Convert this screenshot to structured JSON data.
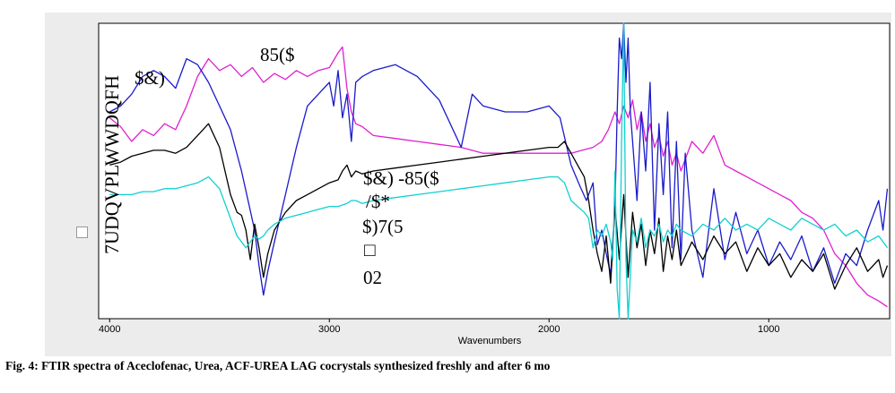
{
  "caption": "Fig. 4: FTIR spectra of Aceclofenac, Urea, ACF-UREA LAG cocrystals synthesized freshly and after 6 mo",
  "chart_data": {
    "type": "line",
    "title": "",
    "xlabel": "Wavenumbers",
    "ylabel": "7UDQVPLWWDQFH",
    "x_ticks": [
      4000,
      3000,
      2000,
      1000
    ],
    "x_reversed": true,
    "xlim": [
      4050,
      450
    ],
    "ylim": [
      0,
      100
    ],
    "grid": false,
    "annotations": [
      "$&)",
      "85($",
      "$&) -85($",
      "/$*",
      "$)7(5",
      "□",
      "02"
    ],
    "series": [
      {
        "name": "85($",
        "color": "#e020d0",
        "x": [
          4000,
          3950,
          3900,
          3850,
          3800,
          3750,
          3700,
          3650,
          3600,
          3550,
          3500,
          3450,
          3400,
          3350,
          3300,
          3250,
          3200,
          3150,
          3100,
          3050,
          3000,
          2960,
          2940,
          2920,
          2900,
          2880,
          2850,
          2800,
          2700,
          2600,
          2500,
          2400,
          2300,
          2200,
          2100,
          2000,
          1900,
          1850,
          1800,
          1760,
          1730,
          1700,
          1680,
          1660,
          1640,
          1620,
          1600,
          1580,
          1560,
          1540,
          1520,
          1500,
          1480,
          1460,
          1440,
          1420,
          1400,
          1350,
          1300,
          1250,
          1200,
          1150,
          1100,
          1050,
          1000,
          950,
          900,
          850,
          800,
          750,
          700,
          650,
          600,
          550,
          500,
          460
        ],
        "y": [
          68,
          65,
          60,
          64,
          62,
          66,
          64,
          72,
          82,
          88,
          84,
          86,
          82,
          85,
          80,
          83,
          81,
          84,
          82,
          84,
          85,
          90,
          92,
          78,
          70,
          66,
          65,
          62,
          61,
          60,
          59,
          58,
          56,
          56,
          56,
          56,
          56,
          57,
          58,
          60,
          64,
          70,
          66,
          72,
          68,
          74,
          64,
          70,
          60,
          66,
          58,
          62,
          55,
          60,
          52,
          56,
          50,
          60,
          56,
          62,
          52,
          50,
          48,
          46,
          44,
          42,
          40,
          36,
          34,
          30,
          22,
          18,
          12,
          8,
          6,
          4
        ]
      },
      {
        "name": "$&)",
        "color": "#1a1acc",
        "x": [
          4000,
          3950,
          3900,
          3850,
          3800,
          3750,
          3700,
          3650,
          3600,
          3550,
          3500,
          3450,
          3400,
          3370,
          3340,
          3320,
          3300,
          3280,
          3250,
          3200,
          3150,
          3100,
          3050,
          3000,
          2980,
          2960,
          2940,
          2920,
          2900,
          2880,
          2850,
          2800,
          2700,
          2600,
          2500,
          2400,
          2350,
          2300,
          2200,
          2100,
          2000,
          1950,
          1900,
          1860,
          1830,
          1800,
          1780,
          1760,
          1740,
          1720,
          1700,
          1690,
          1680,
          1670,
          1660,
          1650,
          1640,
          1630,
          1620,
          1600,
          1580,
          1560,
          1540,
          1520,
          1500,
          1480,
          1460,
          1440,
          1420,
          1400,
          1380,
          1350,
          1300,
          1250,
          1200,
          1150,
          1100,
          1050,
          1000,
          950,
          900,
          850,
          800,
          750,
          700,
          650,
          600,
          550,
          500,
          480,
          460
        ],
        "y": [
          70,
          72,
          76,
          82,
          84,
          82,
          78,
          88,
          86,
          80,
          72,
          64,
          50,
          40,
          30,
          18,
          8,
          16,
          26,
          42,
          58,
          72,
          76,
          80,
          72,
          84,
          68,
          76,
          60,
          80,
          82,
          84,
          86,
          82,
          74,
          58,
          76,
          72,
          70,
          70,
          72,
          68,
          52,
          45,
          40,
          46,
          25,
          30,
          22,
          15,
          38,
          70,
          95,
          88,
          100,
          80,
          95,
          70,
          60,
          40,
          70,
          50,
          80,
          30,
          66,
          42,
          70,
          24,
          60,
          20,
          56,
          30,
          14,
          44,
          20,
          36,
          22,
          30,
          18,
          26,
          20,
          28,
          16,
          24,
          12,
          22,
          18,
          30,
          40,
          30,
          44
        ]
      },
      {
        "name": "$&) -85($",
        "color": "#000000",
        "x": [
          4000,
          3950,
          3900,
          3850,
          3800,
          3750,
          3700,
          3650,
          3600,
          3550,
          3500,
          3450,
          3420,
          3400,
          3380,
          3360,
          3340,
          3320,
          3300,
          3280,
          3250,
          3200,
          3150,
          3100,
          3050,
          3000,
          2960,
          2940,
          2920,
          2900,
          2880,
          2850,
          2800,
          2700,
          2600,
          2500,
          2400,
          2300,
          2200,
          2100,
          2000,
          1960,
          1930,
          1900,
          1870,
          1840,
          1820,
          1800,
          1780,
          1760,
          1740,
          1720,
          1700,
          1680,
          1660,
          1640,
          1620,
          1600,
          1580,
          1560,
          1540,
          1520,
          1500,
          1480,
          1460,
          1440,
          1420,
          1400,
          1350,
          1300,
          1250,
          1200,
          1150,
          1100,
          1050,
          1000,
          950,
          900,
          850,
          800,
          750,
          700,
          650,
          600,
          550,
          500,
          480,
          460
        ],
        "y": [
          52,
          53,
          55,
          56,
          57,
          57,
          56,
          58,
          62,
          66,
          58,
          42,
          36,
          35,
          30,
          20,
          32,
          24,
          14,
          22,
          30,
          36,
          40,
          42,
          44,
          46,
          47,
          50,
          52,
          48,
          50,
          49,
          50,
          51,
          52,
          53,
          54,
          55,
          56,
          57,
          58,
          58,
          60,
          56,
          52,
          48,
          40,
          30,
          22,
          16,
          28,
          12,
          38,
          20,
          42,
          14,
          36,
          24,
          32,
          18,
          30,
          22,
          34,
          16,
          28,
          20,
          30,
          18,
          26,
          20,
          28,
          22,
          26,
          16,
          24,
          18,
          22,
          14,
          20,
          16,
          22,
          10,
          18,
          24,
          16,
          20,
          14,
          18
        ]
      },
      {
        "name": "$)7(5",
        "color": "#10d0d0",
        "x": [
          4000,
          3950,
          3900,
          3850,
          3800,
          3750,
          3700,
          3650,
          3600,
          3550,
          3500,
          3450,
          3420,
          3400,
          3380,
          3360,
          3340,
          3320,
          3300,
          3280,
          3250,
          3200,
          3150,
          3100,
          3050,
          3000,
          2960,
          2920,
          2900,
          2880,
          2850,
          2800,
          2700,
          2600,
          2500,
          2400,
          2300,
          2200,
          2100,
          2000,
          1960,
          1930,
          1900,
          1870,
          1840,
          1820,
          1800,
          1780,
          1760,
          1740,
          1720,
          1710,
          1700,
          1690,
          1680,
          1670,
          1660,
          1650,
          1640,
          1620,
          1600,
          1580,
          1560,
          1540,
          1520,
          1500,
          1480,
          1460,
          1440,
          1420,
          1400,
          1350,
          1300,
          1250,
          1200,
          1150,
          1100,
          1050,
          1000,
          950,
          900,
          850,
          800,
          750,
          700,
          650,
          600,
          550,
          500,
          460
        ],
        "y": [
          42,
          42,
          42,
          43,
          43,
          44,
          44,
          45,
          46,
          48,
          44,
          34,
          28,
          26,
          24,
          26,
          28,
          27,
          28,
          30,
          32,
          34,
          35,
          36,
          37,
          38,
          38,
          39,
          40,
          40,
          39,
          40,
          41,
          42,
          43,
          44,
          45,
          46,
          47,
          48,
          48,
          46,
          40,
          38,
          36,
          34,
          24,
          30,
          28,
          32,
          26,
          20,
          50,
          10,
          0,
          60,
          100,
          20,
          0,
          30,
          26,
          34,
          24,
          30,
          28,
          32,
          26,
          30,
          28,
          32,
          30,
          28,
          32,
          30,
          34,
          30,
          32,
          30,
          34,
          32,
          30,
          34,
          32,
          30,
          32,
          28,
          30,
          26,
          28,
          24
        ]
      }
    ]
  }
}
